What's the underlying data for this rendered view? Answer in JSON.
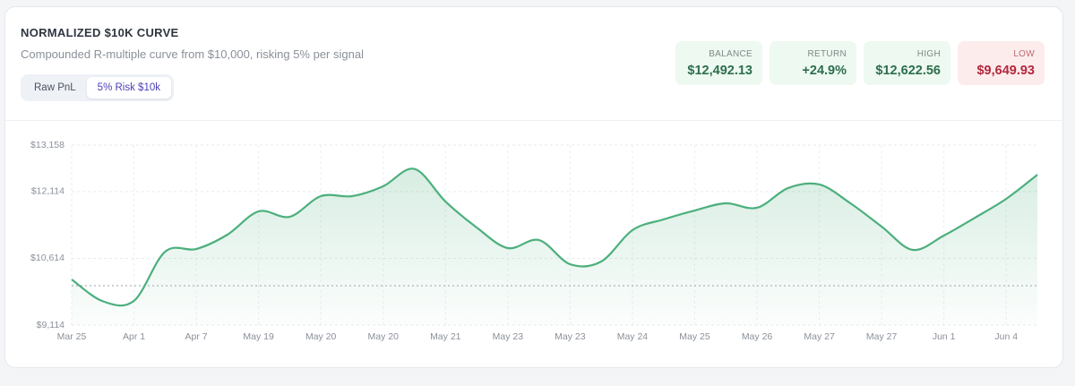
{
  "header": {
    "title": "NORMALIZED $10K CURVE",
    "subtitle": "Compounded R-multiple curve from $10,000, risking 5% per signal"
  },
  "toggle": {
    "options": [
      "Raw PnL",
      "5% Risk $10k"
    ],
    "active": 1
  },
  "stats": [
    {
      "label": "BALANCE",
      "value": "$12,492.13",
      "tone": "positive"
    },
    {
      "label": "RETURN",
      "value": "+24.9%",
      "tone": "positive"
    },
    {
      "label": "HIGH",
      "value": "$12,622.56",
      "tone": "positive"
    },
    {
      "label": "LOW",
      "value": "$9,649.93",
      "tone": "negative"
    }
  ],
  "chart_data": {
    "type": "line",
    "categories": [
      "Mar 25",
      null,
      "Apr 1",
      null,
      "Apr 7",
      null,
      "May 19",
      null,
      "May 20",
      null,
      "May 20",
      null,
      "May 21",
      null,
      "May 23",
      null,
      "May 23",
      null,
      "May 24",
      null,
      "May 25",
      null,
      "May 26",
      null,
      "May 27",
      null,
      "May 27",
      null,
      "Jun 1",
      null,
      "Jun 4",
      null
    ],
    "values": [
      10140,
      9650,
      9660,
      10764,
      10824,
      11146,
      11669,
      11548,
      12011,
      12011,
      12233,
      12622.56,
      11890,
      11307,
      10844,
      11025,
      10482,
      10543,
      11247,
      11488,
      11689,
      11850,
      11750,
      12193,
      12273,
      11850,
      11327,
      10804,
      11126,
      11528,
      11951,
      12492.13
    ],
    "color": "#4caf7d",
    "baseline": 10000,
    "ylim": [
      9114,
      13158
    ],
    "yticks": [
      {
        "value": 9114,
        "label": "$9,114"
      },
      {
        "value": 10614,
        "label": "$10,614"
      },
      {
        "value": 12114,
        "label": "$12,114"
      },
      {
        "value": 13158,
        "label": "$13,158"
      }
    ],
    "grid": true
  }
}
